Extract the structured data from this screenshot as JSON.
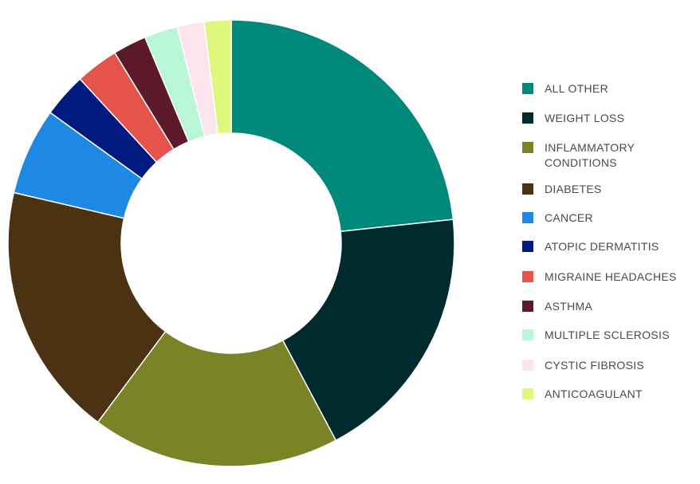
{
  "chart_data": {
    "type": "pie",
    "donut": true,
    "legend_position": "right",
    "categories": [
      "ALL OTHER",
      "WEIGHT LOSS",
      "INFLAMMATORY CONDITIONS",
      "DIABETES",
      "CANCER",
      "ATOPIC DERMATITIS",
      "MIGRAINE HEADACHES",
      "ASTHMA",
      "MULTIPLE SCLEROSIS",
      "CYSTIC FIBROSIS",
      "ANTICOAGULANT"
    ],
    "legend_lines": [
      [
        "ALL OTHER"
      ],
      [
        "WEIGHT LOSS"
      ],
      [
        "INFLAMMATORY",
        "CONDITIONS"
      ],
      [
        "DIABETES"
      ],
      [
        "CANCER"
      ],
      [
        "ATOPIC DERMATITIS"
      ],
      [
        "MIGRAINE HEADACHES"
      ],
      [
        "ASTHMA"
      ],
      [
        "MULTIPLE SCLEROSIS"
      ],
      [
        "CYSTIC FIBROSIS"
      ],
      [
        "ANTICOAGULANT"
      ]
    ],
    "values": [
      24.0,
      19.5,
      18.5,
      19.0,
      6.5,
      3.3,
      3.2,
      2.5,
      2.5,
      2.0,
      2.0
    ],
    "colors": [
      "#00897b",
      "#002b2e",
      "#7a8427",
      "#4a3212",
      "#1e88e5",
      "#001a80",
      "#e5534b",
      "#5a1a2a",
      "#b9f6d8",
      "#fce4ec",
      "#e0f77e"
    ]
  }
}
